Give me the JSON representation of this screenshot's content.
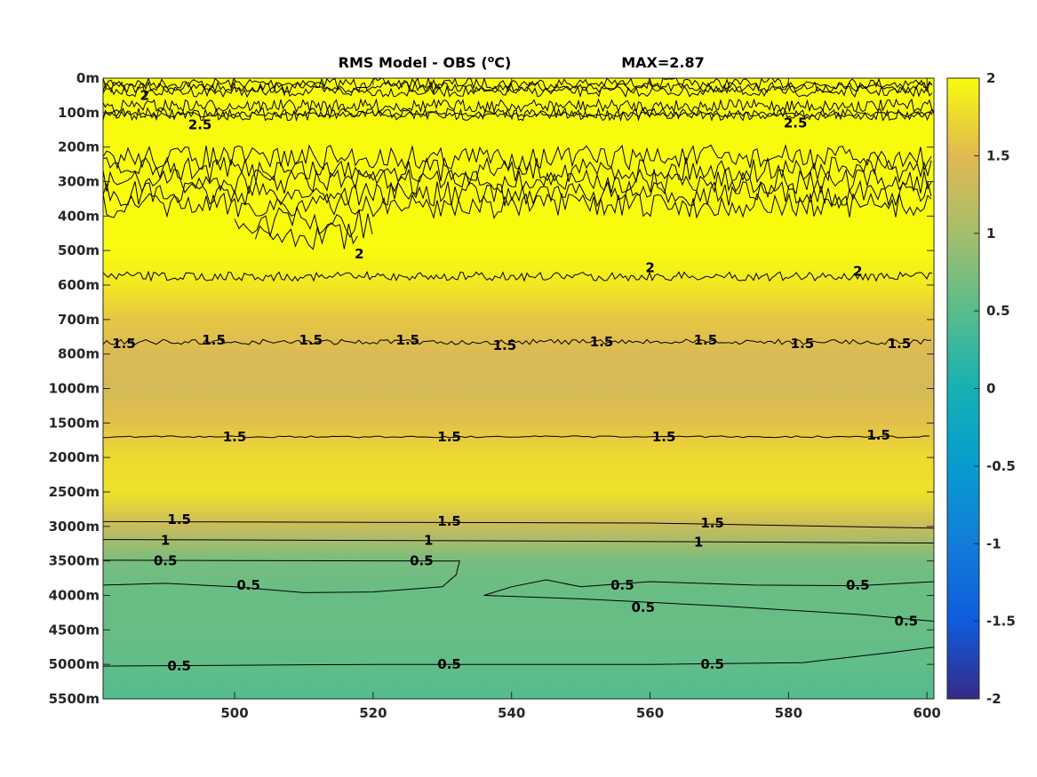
{
  "chart_data": {
    "type": "heatmap",
    "title": "RMS Model - OBS (",
    "title_unit_sup": "o",
    "title_unit_end": "C)",
    "max_label": "MAX=2.87",
    "colormap": "parula",
    "clim": [
      -2,
      2
    ],
    "xlim": [
      481,
      601
    ],
    "x_ticks": [
      500,
      520,
      540,
      560,
      580,
      600
    ],
    "y_ticks": [
      "0m",
      "100m",
      "200m",
      "300m",
      "400m",
      "500m",
      "600m",
      "700m",
      "800m",
      "1000m",
      "1500m",
      "2000m",
      "2500m",
      "3000m",
      "3500m",
      "4000m",
      "4500m",
      "5000m",
      "5500m"
    ],
    "colorbar_ticks": [
      "2",
      "1.5",
      "1",
      "0.5",
      "0",
      "-0.5",
      "-1",
      "-1.5",
      "-2"
    ],
    "depth_profile": [
      {
        "depth": "0m",
        "rms": 2.2
      },
      {
        "depth": "100m",
        "rms": 2.25
      },
      {
        "depth": "200m",
        "rms": 2.2
      },
      {
        "depth": "300m",
        "rms": 2.05
      },
      {
        "depth": "400m",
        "rms": 2.1
      },
      {
        "depth": "500m",
        "rms": 2.05
      },
      {
        "depth": "600m",
        "rms": 1.85
      },
      {
        "depth": "700m",
        "rms": 1.6
      },
      {
        "depth": "800m",
        "rms": 1.45
      },
      {
        "depth": "1000m",
        "rms": 1.4
      },
      {
        "depth": "1500m",
        "rms": 1.55
      },
      {
        "depth": "2000m",
        "rms": 1.75
      },
      {
        "depth": "2500m",
        "rms": 1.8
      },
      {
        "depth": "3000m",
        "rms": 1.3
      },
      {
        "depth": "3500m",
        "rms": 0.7
      },
      {
        "depth": "4000m",
        "rms": 0.6
      },
      {
        "depth": "4500m",
        "rms": 0.6
      },
      {
        "depth": "5000m",
        "rms": 0.55
      },
      {
        "depth": "5500m",
        "rms": 0.45
      }
    ],
    "contours": [
      {
        "level": "2.5",
        "labels": [
          {
            "x": 495,
            "depth_index": 1.35
          },
          {
            "x": 581,
            "depth_index": 1.3
          }
        ]
      },
      {
        "level": "2",
        "labels": [
          {
            "x": 487,
            "depth_index": 0.5
          },
          {
            "x": 518,
            "depth_index": 5.1
          },
          {
            "x": 560,
            "depth_index": 5.5
          },
          {
            "x": 590,
            "depth_index": 5.6
          }
        ]
      },
      {
        "level": "1.5",
        "labels": [
          {
            "x": 484,
            "depth_index": 7.7
          },
          {
            "x": 497,
            "depth_index": 7.6
          },
          {
            "x": 511,
            "depth_index": 7.6
          },
          {
            "x": 525,
            "depth_index": 7.6
          },
          {
            "x": 539,
            "depth_index": 7.75
          },
          {
            "x": 553,
            "depth_index": 7.65
          },
          {
            "x": 568,
            "depth_index": 7.6
          },
          {
            "x": 582,
            "depth_index": 7.7
          },
          {
            "x": 596,
            "depth_index": 7.7
          }
        ]
      },
      {
        "level": "1.5",
        "labels": [
          {
            "x": 500,
            "depth_index": 10.4
          },
          {
            "x": 531,
            "depth_index": 10.4
          },
          {
            "x": 562,
            "depth_index": 10.4
          },
          {
            "x": 593,
            "depth_index": 10.35
          }
        ]
      },
      {
        "level": "1.5",
        "labels": [
          {
            "x": 492,
            "depth_index": 12.8
          },
          {
            "x": 531,
            "depth_index": 12.85
          },
          {
            "x": 569,
            "depth_index": 12.9
          }
        ]
      },
      {
        "level": "1",
        "labels": [
          {
            "x": 490,
            "depth_index": 13.4
          },
          {
            "x": 528,
            "depth_index": 13.4
          },
          {
            "x": 567,
            "depth_index": 13.45
          }
        ]
      },
      {
        "level": "0.5",
        "labels": [
          {
            "x": 490,
            "depth_index": 14.0
          },
          {
            "x": 527,
            "depth_index": 14.0
          },
          {
            "x": 502,
            "depth_index": 14.7
          },
          {
            "x": 556,
            "depth_index": 14.7
          },
          {
            "x": 590,
            "depth_index": 14.7
          },
          {
            "x": 559,
            "depth_index": 15.35
          },
          {
            "x": 597,
            "depth_index": 15.75
          },
          {
            "x": 492,
            "depth_index": 17.05
          },
          {
            "x": 531,
            "depth_index": 17.0
          },
          {
            "x": 569,
            "depth_index": 17.0
          }
        ]
      }
    ]
  }
}
